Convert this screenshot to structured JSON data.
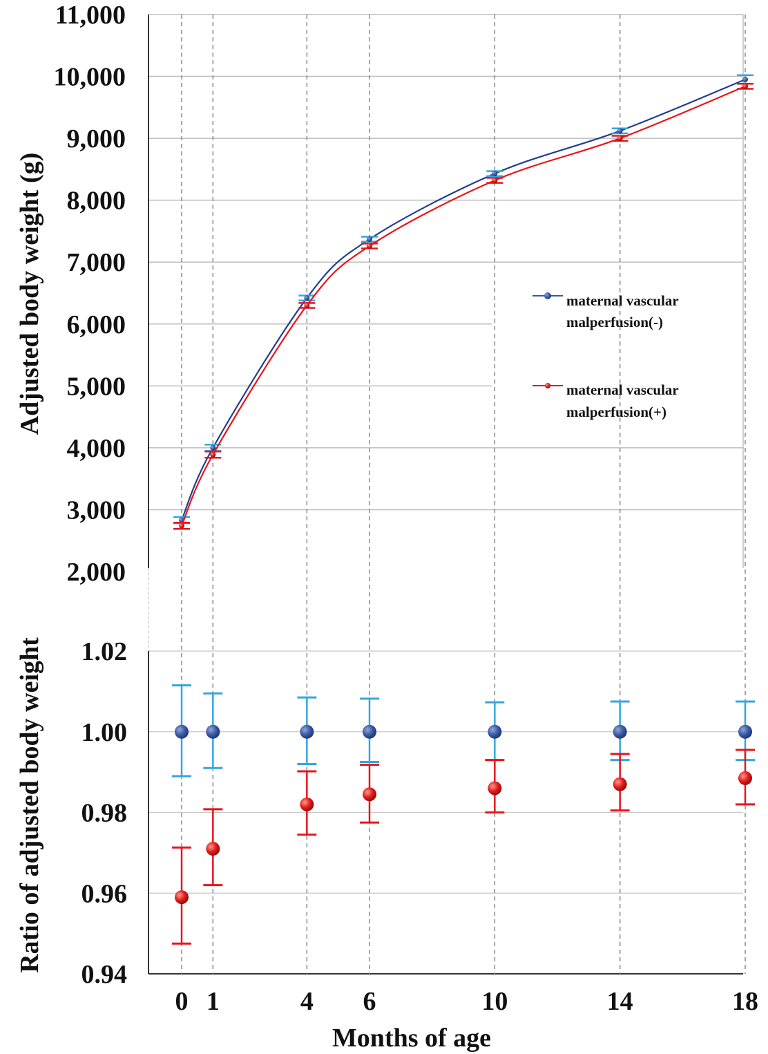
{
  "chart_data": [
    {
      "type": "line",
      "ylabel": "Adjusted body weight (g)",
      "ylim": [
        2000,
        11000
      ],
      "yticks": [
        "2,000",
        "3,000",
        "4,000",
        "5,000",
        "6,000",
        "7,000",
        "8,000",
        "9,000",
        "10,000",
        "11,000"
      ],
      "x": [
        0,
        1,
        4,
        6,
        10,
        14,
        18
      ],
      "grid": true,
      "legend_position": "right",
      "series": [
        {
          "name": "maternal vascular malperfusion(-)",
          "color": "#1f3f8f",
          "error_color": "#33a6e0",
          "values": [
            2830,
            4000,
            6420,
            7370,
            8430,
            9120,
            9950
          ],
          "error": [
            50,
            50,
            40,
            40,
            40,
            40,
            70
          ]
        },
        {
          "name": "maternal vascular malperfusion(+)",
          "color": "#e8151b",
          "error_color": "#e8151b",
          "values": [
            2740,
            3890,
            6300,
            7260,
            8320,
            9000,
            9840
          ],
          "error": [
            50,
            50,
            40,
            40,
            40,
            40,
            40
          ]
        }
      ]
    },
    {
      "type": "scatter",
      "ylabel": "Ratio of adjusted body weight",
      "xlabel": "Months of age",
      "ylim": [
        0.94,
        1.02
      ],
      "yticks": [
        "0.94",
        "0.96",
        "0.98",
        "1.00",
        "1.02"
      ],
      "x": [
        0,
        1,
        4,
        6,
        10,
        14,
        18
      ],
      "xticks": [
        "0",
        "1",
        "4",
        "6",
        "10",
        "14",
        "18"
      ],
      "grid": true,
      "series": [
        {
          "name": "maternal vascular malperfusion(-)",
          "color": "#2e4f9a",
          "error_color": "#33a6e0",
          "values": [
            1.0,
            1.0,
            1.0,
            1.0,
            1.0,
            1.0,
            1.0
          ],
          "error_low": [
            0.989,
            0.991,
            0.992,
            0.9925,
            0.993,
            0.993,
            0.993
          ],
          "error_high": [
            1.0115,
            1.0095,
            1.0085,
            1.0082,
            1.0073,
            1.0075,
            1.0075
          ]
        },
        {
          "name": "maternal vascular malperfusion(+)",
          "color": "#e8151b",
          "error_color": "#e8151b",
          "values": [
            0.959,
            0.971,
            0.982,
            0.9845,
            0.986,
            0.987,
            0.9885
          ],
          "error_low": [
            0.9475,
            0.962,
            0.9745,
            0.9775,
            0.98,
            0.9805,
            0.982
          ],
          "error_high": [
            0.9713,
            0.9808,
            0.9902,
            0.9918,
            0.993,
            0.9945,
            0.9955
          ]
        }
      ]
    }
  ]
}
